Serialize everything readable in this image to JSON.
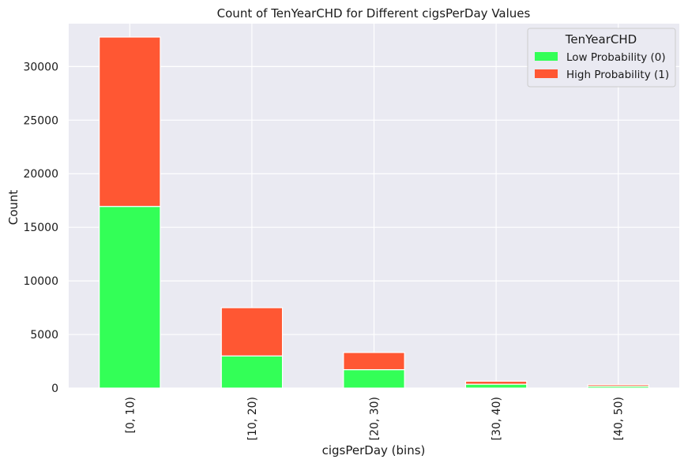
{
  "chart_data": {
    "type": "bar",
    "stacked": true,
    "title": "Count of TenYearCHD for Different cigsPerDay Values",
    "xlabel": "cigsPerDay (bins)",
    "ylabel": "Count",
    "categories": [
      "[0, 10)",
      "[10, 20)",
      "[20, 30)",
      "[30, 40)",
      "[40, 50)"
    ],
    "series": [
      {
        "name": "Low Probability (0)",
        "color": "#33ff57",
        "values": [
          16950,
          3000,
          1720,
          360,
          160
        ]
      },
      {
        "name": "High Probability (1)",
        "color": "#ff5733",
        "values": [
          15800,
          4500,
          1600,
          280,
          150
        ]
      }
    ],
    "ylim": [
      0,
      34000
    ],
    "yticks": [
      0,
      5000,
      10000,
      15000,
      20000,
      25000,
      30000
    ],
    "grid": true,
    "legend": {
      "title": "TenYearCHD",
      "position": "top-right"
    }
  }
}
